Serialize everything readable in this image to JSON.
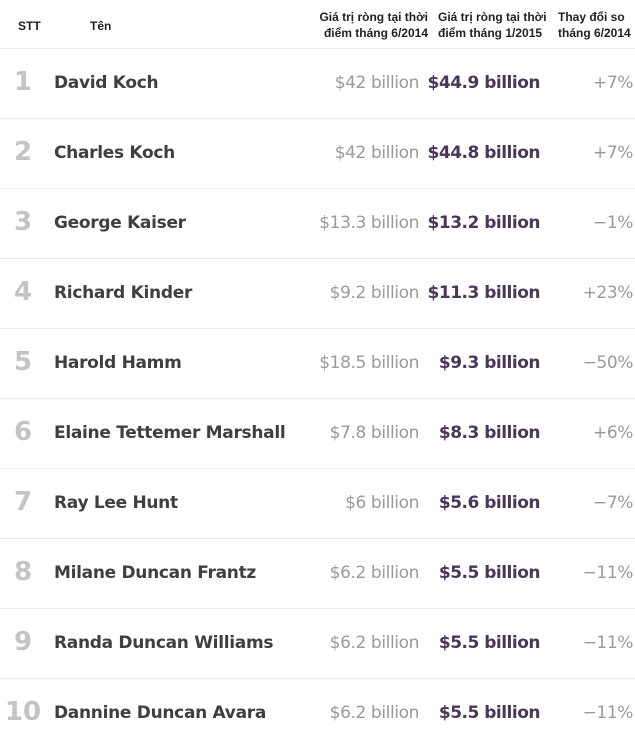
{
  "header": {
    "rank": "STT",
    "name": "Tên",
    "networth_jun2014_line1": "Giá trị ròng tại thời",
    "networth_jun2014_line2": "điểm tháng 6/2014",
    "networth_jan2015_line1": "Giá trị ròng tại thời",
    "networth_jan2015_line2": "điểm tháng 1/2015",
    "change_line1": "Thay đổi so",
    "change_line2": "tháng 6/2014"
  },
  "rows": [
    {
      "rank": "1",
      "name": "David Koch",
      "jun2014": "$42 billion",
      "jan2015": "$44.9 billion",
      "change": "+7%"
    },
    {
      "rank": "2",
      "name": "Charles Koch",
      "jun2014": "$42 billion",
      "jan2015": "$44.8 billion",
      "change": "+7%"
    },
    {
      "rank": "3",
      "name": "George Kaiser",
      "jun2014": "$13.3 billion",
      "jan2015": "$13.2 billion",
      "change": "−1%"
    },
    {
      "rank": "4",
      "name": "Richard Kinder",
      "jun2014": "$9.2 billion",
      "jan2015": "$11.3 billion",
      "change": "+23%"
    },
    {
      "rank": "5",
      "name": "Harold Hamm",
      "jun2014": "$18.5 billion",
      "jan2015": "$9.3 billion",
      "change": "−50%"
    },
    {
      "rank": "6",
      "name": "Elaine Tettemer Marshall",
      "jun2014": "$7.8 billion",
      "jan2015": "$8.3 billion",
      "change": "+6%"
    },
    {
      "rank": "7",
      "name": "Ray Lee Hunt",
      "jun2014": "$6 billion",
      "jan2015": "$5.6 billion",
      "change": "−7%"
    },
    {
      "rank": "8",
      "name": "Milane Duncan Frantz",
      "jun2014": "$6.2 billion",
      "jan2015": "$5.5 billion",
      "change": "−11%"
    },
    {
      "rank": "9",
      "name": "Randa Duncan Williams",
      "jun2014": "$6.2 billion",
      "jan2015": "$5.5 billion",
      "change": "−11%"
    },
    {
      "rank": "10",
      "name": "Dannine Duncan Avara",
      "jun2014": "$6.2 billion",
      "jan2015": "$5.5 billion",
      "change": "−11%"
    }
  ]
}
